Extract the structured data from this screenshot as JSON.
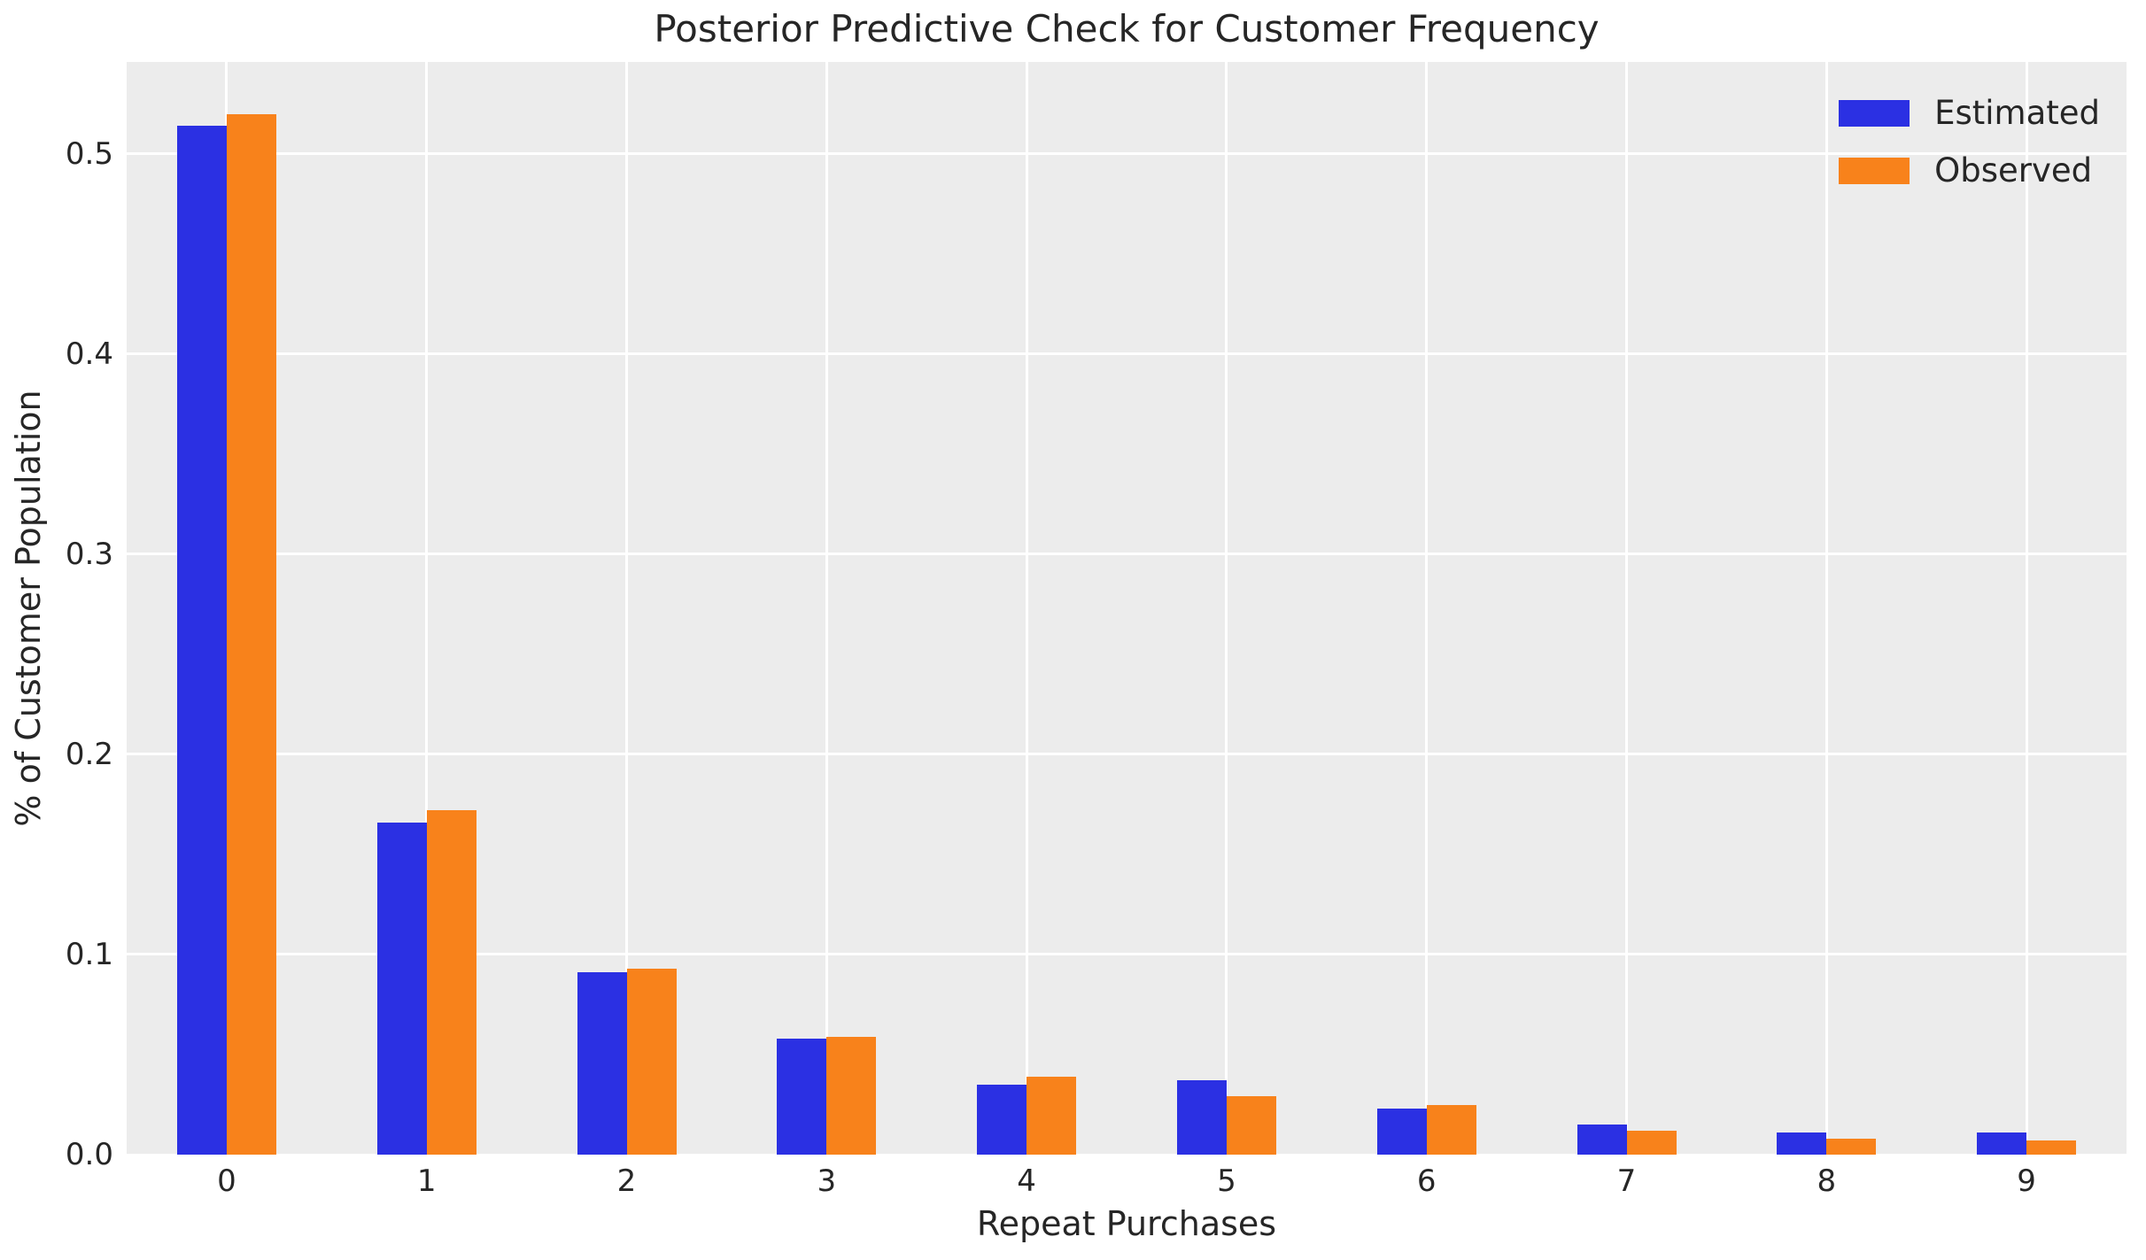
{
  "figure": {
    "background_color": "#ffffff",
    "axes_background_color": "#ececec",
    "grid_color": "#ffffff",
    "text_color": "#262626"
  },
  "chart_data": {
    "type": "bar",
    "title": "Posterior Predictive Check for Customer Frequency",
    "xlabel": "Repeat Purchases",
    "ylabel": "% of Customer Population",
    "categories": [
      "0",
      "1",
      "2",
      "3",
      "4",
      "5",
      "6",
      "7",
      "8",
      "9"
    ],
    "series": [
      {
        "name": "Estimated",
        "color": "#2b30e3",
        "values": [
          0.514,
          0.166,
          0.091,
          0.058,
          0.035,
          0.037,
          0.023,
          0.015,
          0.011,
          0.011
        ]
      },
      {
        "name": "Observed",
        "color": "#f8821b",
        "values": [
          0.52,
          0.172,
          0.093,
          0.059,
          0.039,
          0.029,
          0.025,
          0.012,
          0.008,
          0.007
        ]
      }
    ],
    "ylim": [
      0,
      0.546
    ],
    "yticks": [
      0.0,
      0.1,
      0.2,
      0.3,
      0.4,
      0.5
    ],
    "ytick_labels": [
      "0.0",
      "0.1",
      "0.2",
      "0.3",
      "0.4",
      "0.5"
    ],
    "grid": true,
    "legend_position": "upper right"
  }
}
